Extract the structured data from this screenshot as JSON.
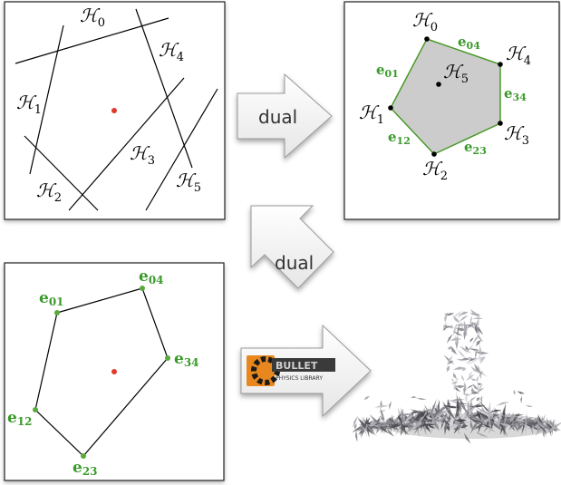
{
  "panel_top_left": {
    "lines": [
      {
        "label": "ℋ",
        "sub": "0"
      },
      {
        "label": "ℋ",
        "sub": "1"
      },
      {
        "label": "ℋ",
        "sub": "2"
      },
      {
        "label": "ℋ",
        "sub": "3"
      },
      {
        "label": "ℋ",
        "sub": "4"
      },
      {
        "label": "ℋ",
        "sub": "5"
      }
    ],
    "point_color": "#e03a2a"
  },
  "arrow_right": {
    "label": "dual"
  },
  "panel_top_right": {
    "vertices": [
      {
        "label": "ℋ",
        "sub": "0"
      },
      {
        "label": "ℋ",
        "sub": "4"
      },
      {
        "label": "ℋ",
        "sub": "3"
      },
      {
        "label": "ℋ",
        "sub": "2"
      },
      {
        "label": "ℋ",
        "sub": "1"
      },
      {
        "label": "ℋ",
        "sub": "5"
      }
    ],
    "edges": [
      {
        "label": "e",
        "sub": "04"
      },
      {
        "label": "e",
        "sub": "34"
      },
      {
        "label": "e",
        "sub": "23"
      },
      {
        "label": "e",
        "sub": "12"
      },
      {
        "label": "e",
        "sub": "01"
      }
    ],
    "fill_color": "#cccccc",
    "edge_color": "#4a9a2a"
  },
  "arrow_left": {
    "label": "dual"
  },
  "panel_bottom_left": {
    "vertices": [
      {
        "label": "e",
        "sub": "01"
      },
      {
        "label": "e",
        "sub": "04"
      },
      {
        "label": "e",
        "sub": "34"
      },
      {
        "label": "e",
        "sub": "23"
      },
      {
        "label": "e",
        "sub": "12"
      }
    ],
    "vertex_color": "#5aaa3a",
    "point_color": "#e03a2a"
  },
  "bullet_logo": {
    "name": "BULLET",
    "tagline": "PHYSICS LIBRARY"
  }
}
